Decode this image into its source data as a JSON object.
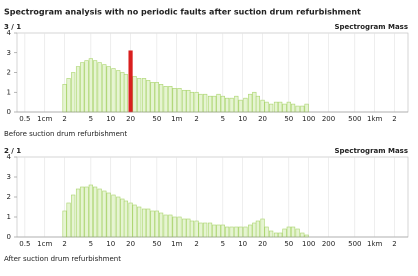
{
  "title": "Spectrogram analysis with no periodic faults after suction drum refurbishment",
  "chart_data": [
    {
      "type": "bar",
      "label": "3 / 1",
      "subtitle": "Spectrogram Mass",
      "caption": "Before suction drum refurbishment",
      "log_x": true,
      "grid": true,
      "x": [
        0.02,
        0.023,
        0.027,
        0.032,
        0.037,
        0.043,
        0.05,
        0.058,
        0.068,
        0.08,
        0.093,
        0.11,
        0.13,
        0.15,
        0.17,
        0.2,
        0.23,
        0.27,
        0.32,
        0.37,
        0.43,
        0.5,
        0.58,
        0.68,
        0.8,
        0.93,
        1.1,
        1.3,
        1.5,
        1.7,
        2,
        2.3,
        2.7,
        3.2,
        3.7,
        4.3,
        5,
        5.8,
        6.8,
        8,
        9.3,
        11,
        13,
        15,
        17,
        20,
        23,
        27,
        32,
        37,
        43,
        50,
        58,
        68,
        80,
        93
      ],
      "series": [
        {
          "color": "#a9d46c",
          "values": [
            1.4,
            1.7,
            2.0,
            2.3,
            2.5,
            2.6,
            2.7,
            2.6,
            2.5,
            2.4,
            2.3,
            2.2,
            2.1,
            2.0,
            1.9,
            null,
            1.8,
            1.7,
            1.7,
            1.6,
            1.5,
            1.5,
            1.4,
            1.3,
            1.3,
            1.2,
            1.2,
            1.1,
            1.1,
            1.0,
            1.0,
            0.9,
            0.9,
            0.8,
            0.8,
            0.9,
            0.8,
            0.7,
            0.7,
            0.8,
            0.6,
            0.7,
            0.9,
            1.0,
            0.8,
            0.6,
            0.5,
            0.4,
            0.5,
            0.5,
            0.4,
            0.5,
            0.4,
            0.3,
            0.3,
            0.4
          ]
        },
        {
          "color": "#d91f1f",
          "values": [
            null,
            null,
            null,
            null,
            null,
            null,
            null,
            null,
            null,
            null,
            null,
            null,
            null,
            null,
            null,
            3.1,
            null,
            null,
            null,
            null,
            null,
            null,
            null,
            null,
            null,
            null,
            null,
            null,
            null,
            null,
            null,
            null,
            null,
            null,
            null,
            null,
            null,
            null,
            null,
            null,
            null,
            null,
            null,
            null,
            null,
            null,
            null,
            null,
            null,
            null,
            null,
            null,
            null,
            null,
            null,
            null
          ]
        }
      ],
      "xlim": [
        0.0038,
        3200
      ],
      "ylim": [
        0,
        4
      ],
      "yticks": [
        0,
        1,
        2,
        3,
        4
      ],
      "xticks": [
        {
          "value": 0.005,
          "label": "0.5"
        },
        {
          "value": 0.01,
          "label": "1cm"
        },
        {
          "value": 0.02,
          "label": "2"
        },
        {
          "value": 0.05,
          "label": "5"
        },
        {
          "value": 0.1,
          "label": "10"
        },
        {
          "value": 0.2,
          "label": "20"
        },
        {
          "value": 0.5,
          "label": "50"
        },
        {
          "value": 1,
          "label": "1m"
        },
        2,
        5,
        10,
        20,
        50,
        100,
        200,
        500,
        {
          "value": 1000,
          "label": "1km"
        },
        {
          "value": 2000,
          "label": "2"
        }
      ]
    },
    {
      "type": "bar",
      "label": "2 / 1",
      "subtitle": "Spectrogram Mass",
      "caption": "After suction drum refurbishment",
      "log_x": true,
      "grid": true,
      "x": [
        0.02,
        0.023,
        0.027,
        0.032,
        0.037,
        0.043,
        0.05,
        0.058,
        0.068,
        0.08,
        0.093,
        0.11,
        0.13,
        0.15,
        0.17,
        0.2,
        0.23,
        0.27,
        0.32,
        0.37,
        0.43,
        0.5,
        0.58,
        0.68,
        0.8,
        0.93,
        1.1,
        1.3,
        1.5,
        1.7,
        2,
        2.3,
        2.7,
        3.2,
        3.7,
        4.3,
        5,
        5.8,
        6.8,
        8,
        9.3,
        11,
        13,
        15,
        17,
        20,
        23,
        27,
        32,
        37,
        43,
        50,
        58,
        68,
        80,
        93
      ],
      "series": [
        {
          "color": "#a9d46c",
          "values": [
            1.3,
            1.7,
            2.1,
            2.4,
            2.5,
            2.5,
            2.6,
            2.5,
            2.4,
            2.3,
            2.2,
            2.1,
            2.0,
            1.9,
            1.8,
            1.7,
            1.6,
            1.5,
            1.4,
            1.4,
            1.3,
            1.3,
            1.2,
            1.1,
            1.1,
            1.0,
            1.0,
            0.9,
            0.9,
            0.8,
            0.8,
            0.7,
            0.7,
            0.7,
            0.6,
            0.6,
            0.6,
            0.5,
            0.5,
            0.5,
            0.5,
            0.5,
            0.6,
            0.7,
            0.8,
            0.9,
            0.5,
            0.3,
            0.2,
            0.2,
            0.4,
            0.5,
            0.5,
            0.4,
            0.2,
            0.1
          ]
        }
      ],
      "xlim": [
        0.0038,
        3200
      ],
      "ylim": [
        0,
        4
      ],
      "yticks": [
        0,
        1,
        2,
        3,
        4
      ],
      "xticks": [
        {
          "value": 0.005,
          "label": "0.5"
        },
        {
          "value": 0.01,
          "label": "1cm"
        },
        {
          "value": 0.02,
          "label": "2"
        },
        {
          "value": 0.05,
          "label": "5"
        },
        {
          "value": 0.1,
          "label": "10"
        },
        {
          "value": 0.2,
          "label": "20"
        },
        {
          "value": 0.5,
          "label": "50"
        },
        {
          "value": 1,
          "label": "1m"
        },
        2,
        5,
        10,
        20,
        50,
        100,
        200,
        500,
        {
          "value": 1000,
          "label": "1km"
        },
        {
          "value": 2000,
          "label": "2"
        }
      ]
    }
  ]
}
